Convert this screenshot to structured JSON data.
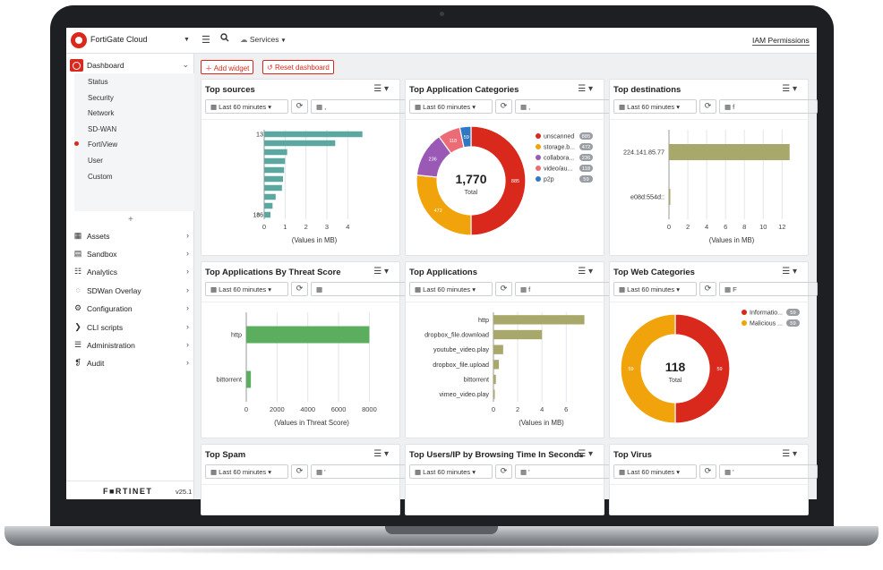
{
  "app": {
    "title": "FortiGate Cloud",
    "services_label": "Services",
    "iam_label": "IAM Permissions",
    "brand": "F■RTINET",
    "version": "v25.1"
  },
  "sidebar": {
    "dashboard_label": "Dashboard",
    "sub_items": [
      {
        "label": "Status",
        "active": false
      },
      {
        "label": "Security",
        "active": false
      },
      {
        "label": "Network",
        "active": false
      },
      {
        "label": "SD-WAN",
        "active": false
      },
      {
        "label": "FortiView",
        "active": true
      },
      {
        "label": "User",
        "active": false
      },
      {
        "label": "Custom",
        "active": false
      }
    ],
    "add_label": "+",
    "items": [
      {
        "label": "Assets",
        "icon": "assets-icon",
        "glyph": "▦"
      },
      {
        "label": "Sandbox",
        "icon": "sandbox-icon",
        "glyph": "▤"
      },
      {
        "label": "Analytics",
        "icon": "analytics-icon",
        "glyph": "☷"
      },
      {
        "label": "SDWan Overlay",
        "icon": "overlay-icon",
        "glyph": "◌"
      },
      {
        "label": "Configuration",
        "icon": "gear-icon",
        "glyph": "⚙"
      },
      {
        "label": "CLI scripts",
        "icon": "terminal-icon",
        "glyph": "❯"
      },
      {
        "label": "Administration",
        "icon": "admin-icon",
        "glyph": "☰"
      },
      {
        "label": "Audit",
        "icon": "audit-icon",
        "glyph": "❡"
      }
    ]
  },
  "toolbar": {
    "add_widget": "Add widget",
    "reset_dashboard": "Reset dashboard"
  },
  "colors": {
    "accent": "#da291c",
    "teal": "#5ba8a0",
    "green": "#5cae5f",
    "olive": "#a8a86a",
    "orange": "#f0a30a",
    "purple": "#9b59b6",
    "pink": "#ec6b75",
    "blue": "#2f78c4"
  },
  "widgets": [
    {
      "id": "top-sources",
      "title": "Top sources",
      "time": "Last 60 minutes",
      "filter": "▦ ,",
      "filter_text": ","
    },
    {
      "id": "top-app-categories",
      "title": "Top Application Categories",
      "time": "Last 60 minutes",
      "filter": "▦ ,"
    },
    {
      "id": "top-destinations",
      "title": "Top destinations",
      "time": "Last 60 minutes",
      "filter": "▦ f"
    },
    {
      "id": "top-apps-threat",
      "title": "Top Applications By Threat Score",
      "time": "Last 60 minutes",
      "filter": "▦"
    },
    {
      "id": "top-applications",
      "title": "Top Applications",
      "time": "Last 60 minutes",
      "filter": "▦ f"
    },
    {
      "id": "top-web-categories",
      "title": "Top Web Categories",
      "time": "Last 60 minutes",
      "filter": "▦ F"
    },
    {
      "id": "top-spam",
      "title": "Top Spam",
      "time": "Last 60 minutes",
      "filter": "▦ '"
    },
    {
      "id": "top-users-browsing",
      "title": "Top Users/IP by Browsing Time In Seconds",
      "time": "Last 60 minutes",
      "filter": "▦ '"
    },
    {
      "id": "top-virus",
      "title": "Top Virus",
      "time": "Last 60 minutes",
      "filter": "▦ '"
    }
  ],
  "chart_data": [
    {
      "id": "top-sources",
      "type": "bar",
      "orientation": "horizontal",
      "categories": [
        "1",
        "",
        "",
        "",
        "",
        "",
        "",
        "",
        "",
        "1c"
      ],
      "visible_tick_texts": [
        "3",
        "",
        "",
        "",
        "",
        "",
        "",
        "",
        "",
        "36"
      ],
      "values": [
        4.7,
        3.4,
        1.1,
        1.0,
        0.95,
        0.9,
        0.85,
        0.55,
        0.4,
        0.3
      ],
      "xlabel": "(Values in MB)",
      "xticks": [
        0,
        1,
        2,
        3,
        4
      ],
      "xlim": [
        0,
        4.8
      ],
      "color": "#5ba8a0"
    },
    {
      "id": "top-app-categories",
      "type": "pie",
      "donut": true,
      "total": "1,770",
      "total_label": "Total",
      "slices": [
        {
          "label": "unscanned",
          "value": 885,
          "color": "#d9281c"
        },
        {
          "label": "storage.b...",
          "value": 472,
          "color": "#f0a30a"
        },
        {
          "label": "collabora...",
          "value": 236,
          "color": "#9b59b6"
        },
        {
          "label": "video/au...",
          "value": 118,
          "color": "#ec6b75"
        },
        {
          "label": "p2p",
          "value": 59,
          "color": "#2f78c4"
        }
      ]
    },
    {
      "id": "top-destinations",
      "type": "bar",
      "orientation": "horizontal",
      "categories": [
        "224.141.85.77",
        "e08d:554d::"
      ],
      "values": [
        12.8,
        0.1
      ],
      "xlabel": "(Values in MB)",
      "xticks": [
        0,
        2,
        4,
        6,
        8,
        10,
        12
      ],
      "xlim": [
        0,
        13.3
      ],
      "color": "#a8a86a"
    },
    {
      "id": "top-apps-threat",
      "type": "bar",
      "orientation": "horizontal",
      "categories": [
        "http",
        "bittorrent"
      ],
      "values": [
        8000,
        300
      ],
      "xlabel": "(Values in Threat Score)",
      "xticks": [
        0,
        2000,
        4000,
        6000,
        8000
      ],
      "xlim": [
        0,
        8500
      ],
      "color": "#5cae5f"
    },
    {
      "id": "top-applications",
      "type": "bar",
      "orientation": "horizontal",
      "categories": [
        "http",
        "dropbox_file.download",
        "youtube_video.play",
        "dropbox_file.upload",
        "bittorrent",
        "vimeo_video.play"
      ],
      "values": [
        7.5,
        4.0,
        0.8,
        0.45,
        0.2,
        0.1
      ],
      "xlabel": "(Values in MB)",
      "xticks": [
        0,
        2,
        4,
        6
      ],
      "xlim": [
        0,
        7.9
      ],
      "color": "#a8a86a"
    },
    {
      "id": "top-web-categories",
      "type": "pie",
      "donut": true,
      "total": "118",
      "total_label": "Total",
      "slices": [
        {
          "label": "Informatio...",
          "value": 59,
          "color": "#d9281c"
        },
        {
          "label": "Malicious ...",
          "value": 59,
          "color": "#f0a30a"
        }
      ]
    }
  ]
}
